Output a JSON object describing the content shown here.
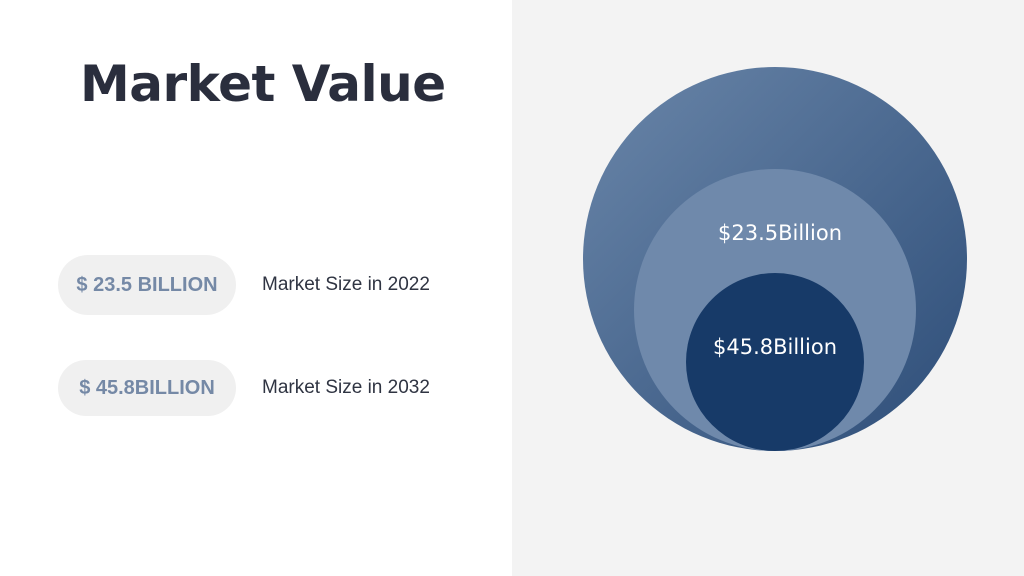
{
  "slide": {
    "title": "Market Value"
  },
  "stats": [
    {
      "value": "$ 23.5 BILLION",
      "caption": "Market Size in 2022"
    },
    {
      "value": "$ 45.8BILLION",
      "caption": "Market Size in 2032"
    }
  ],
  "diagram": {
    "outer_color_start": "#6a86a9",
    "outer_color_end": "#2d4d78",
    "middle_color": "#6f89ab",
    "inner_color": "#173a68",
    "middle_label": "$23.5Billion",
    "inner_label": "$45.8Billion"
  }
}
